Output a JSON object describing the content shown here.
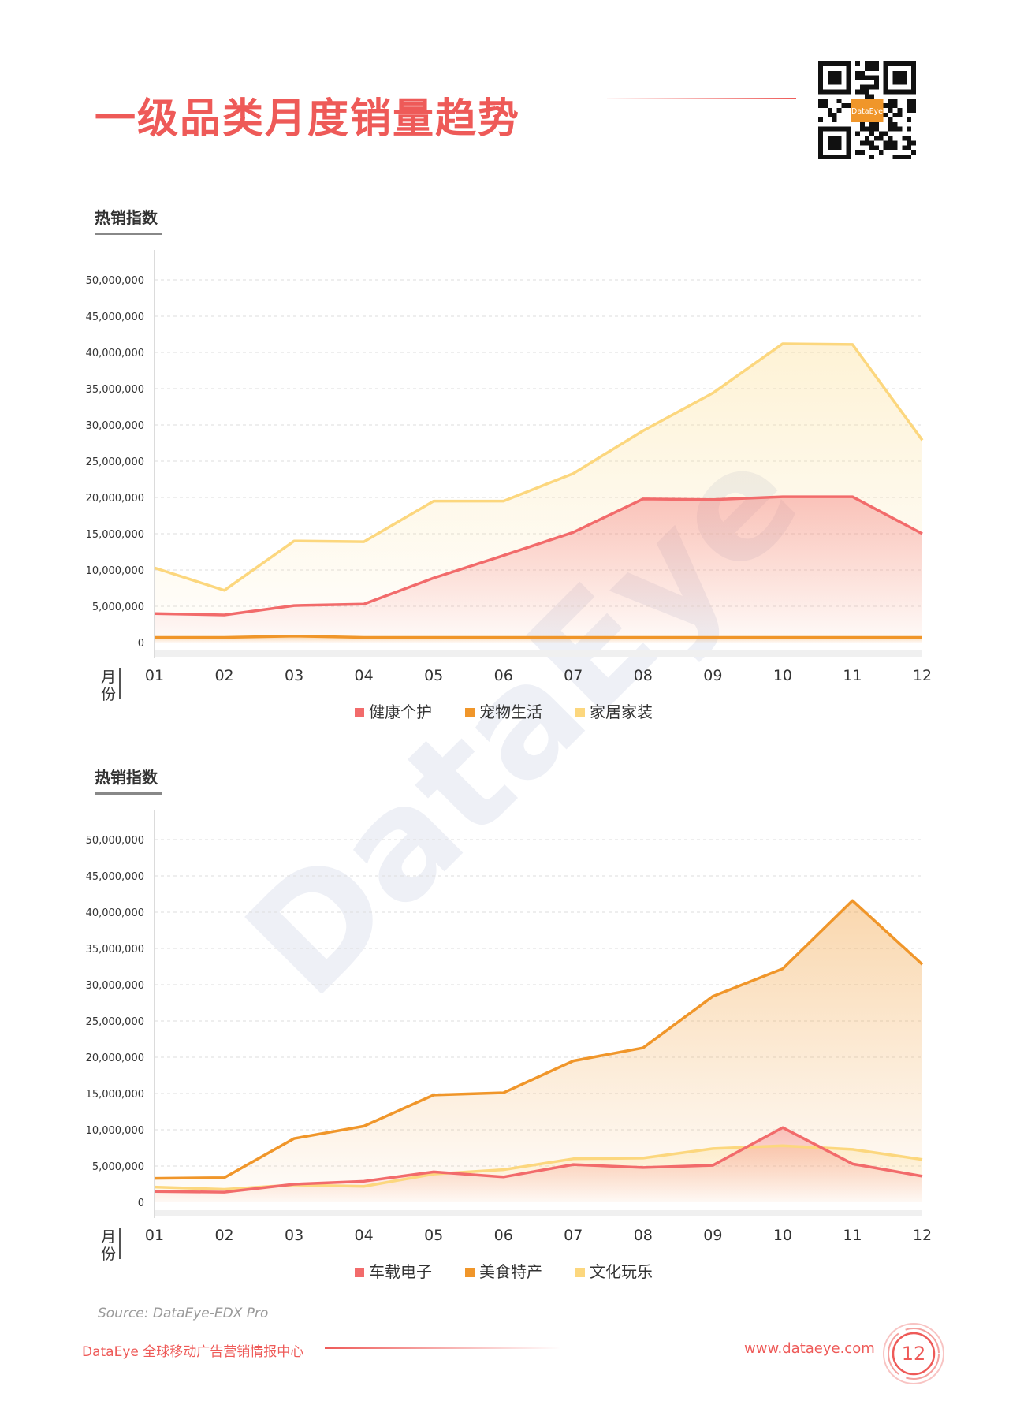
{
  "page": {
    "title": "一级品类月度销量趋势",
    "source": "Source: DataEye-EDX Pro",
    "footer_left": "DataEye 全球移动广告营销情报中心",
    "footer_right": "www.dataeye.com",
    "page_number": "12",
    "watermark": "DataEye",
    "qr_label": "DataEye"
  },
  "colors": {
    "red": "#f26b6b",
    "orange": "#f0962a",
    "yellow": "#fcd77e",
    "accent": "#ee5a58"
  },
  "chart_data": [
    {
      "type": "area",
      "ylabel": "热销指数",
      "xlabel": "月份",
      "categories": [
        "01",
        "02",
        "03",
        "04",
        "05",
        "06",
        "07",
        "08",
        "09",
        "10",
        "11",
        "12"
      ],
      "yticks": [
        "0",
        "5,000,000",
        "10,000,000",
        "15,000,000",
        "20,000,000",
        "25,000,000",
        "30,000,000",
        "35,000,000",
        "40,000,000",
        "45,000,000",
        "50,000,000"
      ],
      "ylim": [
        0,
        50000000
      ],
      "grid": true,
      "legend_position": "bottom",
      "series": [
        {
          "name": "健康个护",
          "color": "red",
          "values": [
            4000000,
            3800000,
            5100000,
            5300000,
            8900000,
            12000000,
            15200000,
            19800000,
            19700000,
            20100000,
            20100000,
            15000000
          ]
        },
        {
          "name": "宠物生活",
          "color": "orange",
          "values": [
            700000,
            700000,
            900000,
            700000,
            700000,
            700000,
            700000,
            700000,
            700000,
            700000,
            700000,
            700000
          ]
        },
        {
          "name": "家居家装",
          "color": "yellow",
          "values": [
            10300000,
            7200000,
            14000000,
            13900000,
            19500000,
            19500000,
            23300000,
            29200000,
            34400000,
            41200000,
            41100000,
            27900000
          ]
        }
      ]
    },
    {
      "type": "area",
      "ylabel": "热销指数",
      "xlabel": "月份",
      "categories": [
        "01",
        "02",
        "03",
        "04",
        "05",
        "06",
        "07",
        "08",
        "09",
        "10",
        "11",
        "12"
      ],
      "yticks": [
        "0",
        "5,000,000",
        "10,000,000",
        "15,000,000",
        "20,000,000",
        "25,000,000",
        "30,000,000",
        "35,000,000",
        "40,000,000",
        "45,000,000",
        "50,000,000"
      ],
      "ylim": [
        0,
        50000000
      ],
      "grid": true,
      "legend_position": "bottom",
      "series": [
        {
          "name": "车载电子",
          "color": "red",
          "values": [
            1500000,
            1400000,
            2500000,
            2900000,
            4200000,
            3500000,
            5200000,
            4800000,
            5100000,
            10300000,
            5300000,
            3600000
          ]
        },
        {
          "name": "美食特产",
          "color": "orange",
          "values": [
            3300000,
            3400000,
            8800000,
            10500000,
            14800000,
            15100000,
            19500000,
            21300000,
            28400000,
            32200000,
            41600000,
            32800000
          ]
        },
        {
          "name": "文化玩乐",
          "color": "yellow",
          "values": [
            2100000,
            1800000,
            2400000,
            2200000,
            3900000,
            4500000,
            6000000,
            6100000,
            7400000,
            7800000,
            7300000,
            5900000
          ]
        }
      ]
    }
  ]
}
